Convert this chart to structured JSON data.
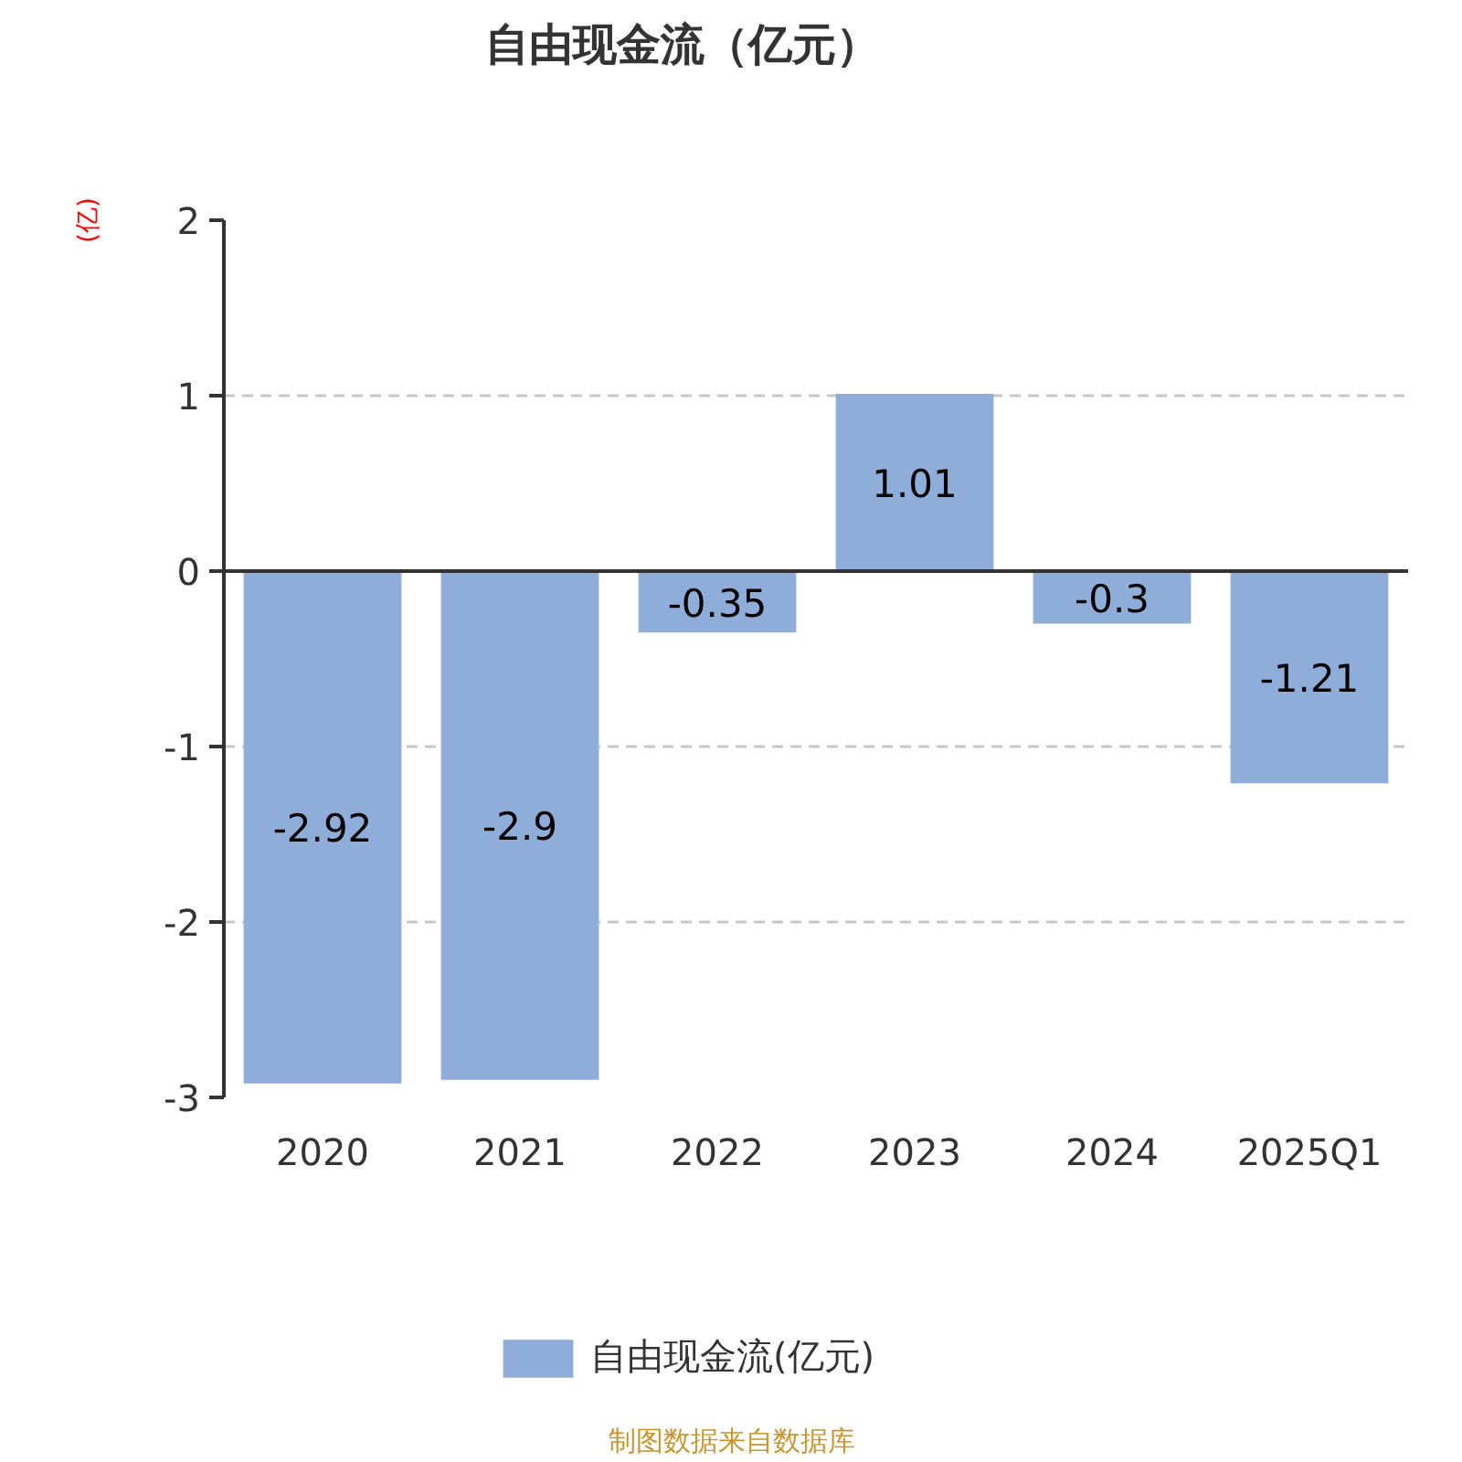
{
  "chart_data": {
    "type": "bar",
    "title": "自由现金流（亿元）",
    "ylabel": "(亿)",
    "categories": [
      "2020",
      "2021",
      "2022",
      "2023",
      "2024",
      "2025Q1"
    ],
    "series": [
      {
        "name": "自由现金流(亿元)",
        "color": "#8eadd9",
        "values": [
          -2.92,
          -2.9,
          -0.35,
          1.01,
          -0.3,
          -1.21
        ]
      }
    ],
    "ylim": [
      -3,
      2
    ],
    "yticks": [
      -3,
      -2,
      -1,
      0,
      1,
      2
    ],
    "grid": "y",
    "legend": "bottom",
    "data_labels": true,
    "annotations": [
      "制图数据来自数据库"
    ]
  }
}
